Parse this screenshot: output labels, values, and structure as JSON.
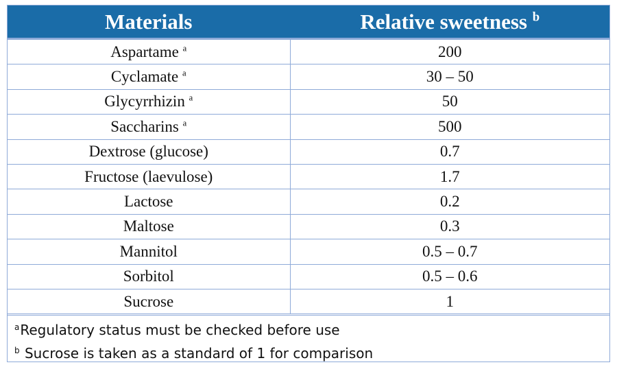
{
  "table": {
    "headers": {
      "materials": "Materials",
      "sweetness": "Relative sweetness",
      "sweetness_mark": "b"
    },
    "rows": [
      {
        "material": "Aspartame",
        "mark": "a",
        "value": "200"
      },
      {
        "material": "Cyclamate",
        "mark": "a",
        "value": "30 – 50"
      },
      {
        "material": "Glycyrrhizin",
        "mark": "a",
        "value": "50"
      },
      {
        "material": "Saccharins",
        "mark": "a",
        "value": "500"
      },
      {
        "material": "Dextrose (glucose)",
        "mark": "",
        "value": "0.7"
      },
      {
        "material": "Fructose (laevulose)",
        "mark": "",
        "value": "1.7"
      },
      {
        "material": "Lactose",
        "mark": "",
        "value": "0.2"
      },
      {
        "material": "Maltose",
        "mark": "",
        "value": "0.3"
      },
      {
        "material": "Mannitol",
        "mark": "",
        "value": "0.5 – 0.7"
      },
      {
        "material": "Sorbitol",
        "mark": "",
        "value": "0.5 – 0.6"
      },
      {
        "material": "Sucrose",
        "mark": "",
        "value": "1"
      }
    ],
    "footnotes": [
      {
        "mark": "a",
        "text": "Regulatory status must be checked before use"
      },
      {
        "mark": "b",
        "text": "Sucrose is taken as a standard of 1 for comparison"
      }
    ]
  },
  "colors": {
    "header_bg": "#1a6ca8",
    "header_text": "#ffffff",
    "border": "#8eaad8"
  }
}
